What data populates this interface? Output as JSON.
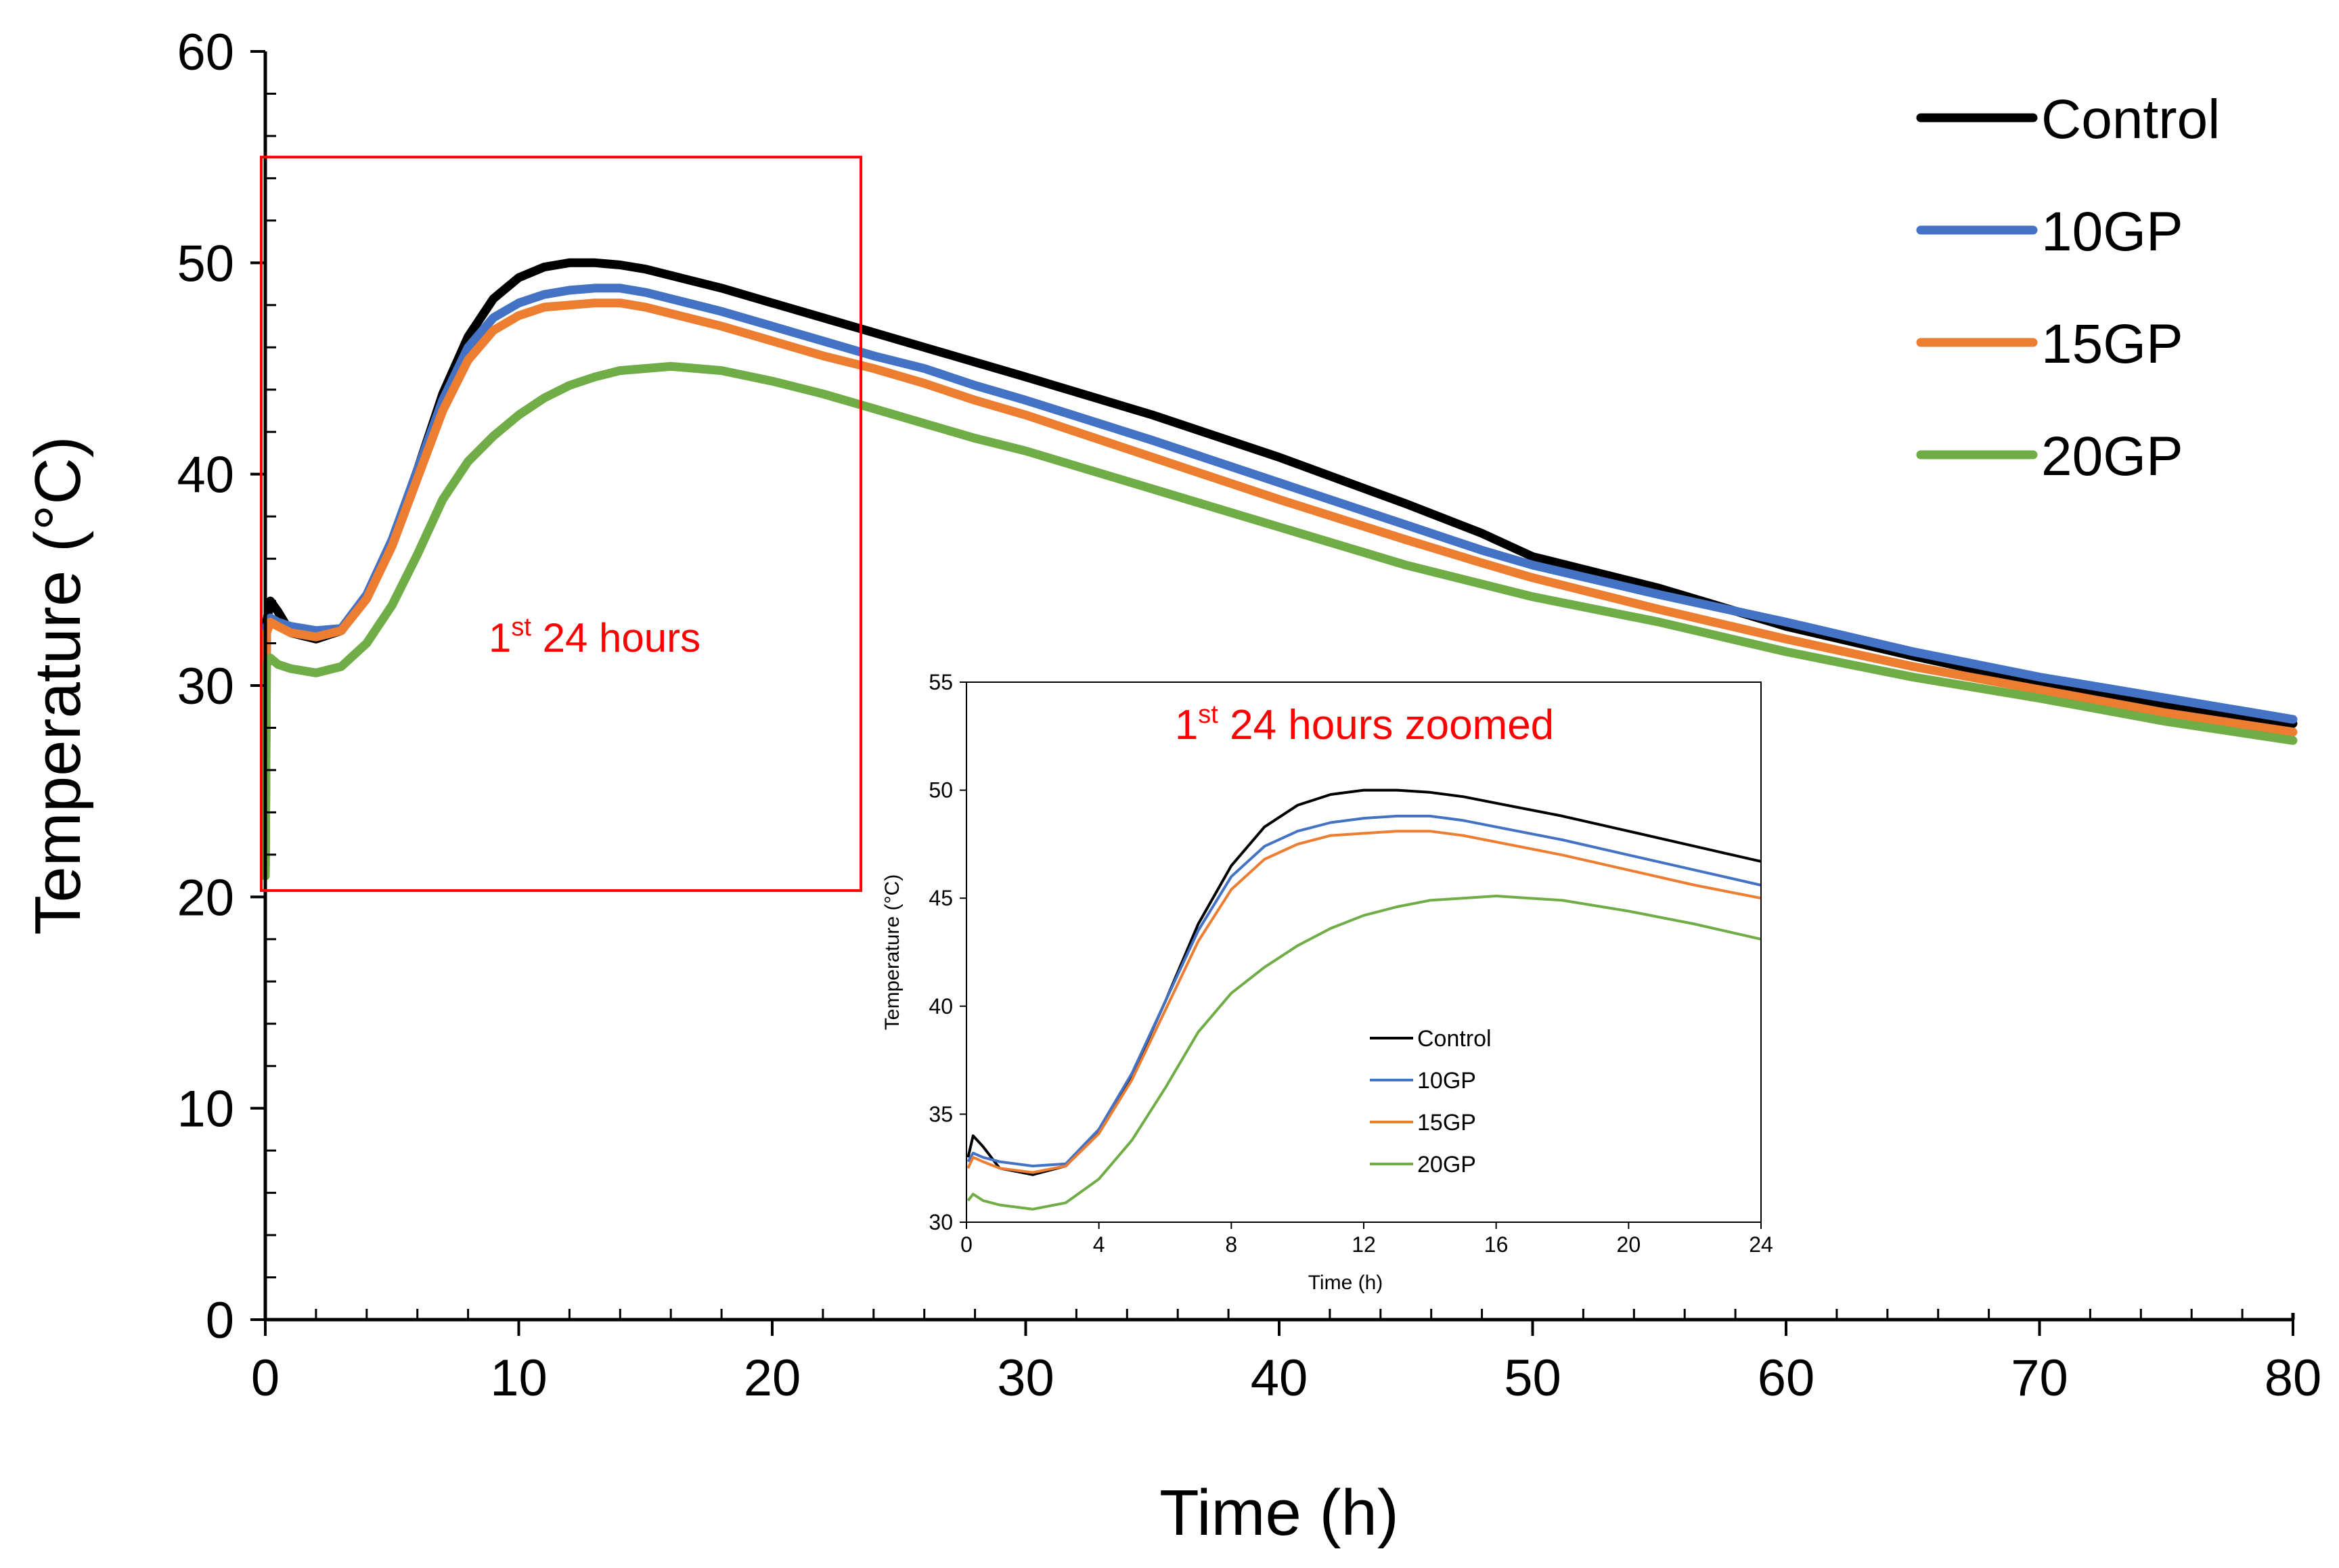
{
  "chart_data": [
    {
      "type": "line",
      "xlabel": "Time (h)",
      "ylabel": "Temperature (°C)",
      "xlim": [
        0,
        80
      ],
      "ylim": [
        0,
        60
      ],
      "xticks": [
        0,
        10,
        20,
        30,
        40,
        50,
        60,
        70,
        80
      ],
      "yticks": [
        0,
        10,
        20,
        30,
        40,
        50,
        60
      ],
      "grid": false,
      "legend": "top-right",
      "annotation": {
        "main": "1",
        "sup": "st",
        "rest": " 24 hours",
        "box_x": [
          0,
          23.5
        ],
        "box_y": [
          20.3,
          55
        ]
      },
      "series": [
        {
          "name": "Control",
          "color": "#000000",
          "points": [
            [
              0,
              21
            ],
            [
              0.05,
              33
            ],
            [
              0.2,
              34
            ],
            [
              0.5,
              33.5
            ],
            [
              1,
              32.5
            ],
            [
              2,
              32.2
            ],
            [
              3,
              32.6
            ],
            [
              4,
              34.2
            ],
            [
              5,
              36.8
            ],
            [
              6,
              40.2
            ],
            [
              7,
              43.8
            ],
            [
              8,
              46.5
            ],
            [
              9,
              48.3
            ],
            [
              10,
              49.3
            ],
            [
              11,
              49.8
            ],
            [
              12,
              50
            ],
            [
              13,
              50
            ],
            [
              14,
              49.9
            ],
            [
              15,
              49.7
            ],
            [
              16,
              49.4
            ],
            [
              18,
              48.8
            ],
            [
              20,
              48.1
            ],
            [
              22,
              47.4
            ],
            [
              24,
              46.7
            ],
            [
              26,
              46
            ],
            [
              28,
              45.3
            ],
            [
              30,
              44.6
            ],
            [
              35,
              42.8
            ],
            [
              40,
              40.8
            ],
            [
              45,
              38.6
            ],
            [
              48,
              37.2
            ],
            [
              50,
              36.1
            ],
            [
              55,
              34.6
            ],
            [
              60,
              32.8
            ],
            [
              65,
              31.4
            ],
            [
              70,
              30.1
            ],
            [
              75,
              29
            ],
            [
              80,
              28.2
            ]
          ]
        },
        {
          "name": "10GP",
          "color": "#4472c4",
          "points": [
            [
              0,
              21
            ],
            [
              0.05,
              32.8
            ],
            [
              0.2,
              33.2
            ],
            [
              0.5,
              33
            ],
            [
              1,
              32.8
            ],
            [
              2,
              32.6
            ],
            [
              3,
              32.7
            ],
            [
              4,
              34.3
            ],
            [
              5,
              36.9
            ],
            [
              6,
              40.2
            ],
            [
              7,
              43.5
            ],
            [
              8,
              46
            ],
            [
              9,
              47.4
            ],
            [
              10,
              48.1
            ],
            [
              11,
              48.5
            ],
            [
              12,
              48.7
            ],
            [
              13,
              48.8
            ],
            [
              14,
              48.8
            ],
            [
              15,
              48.6
            ],
            [
              16,
              48.3
            ],
            [
              18,
              47.7
            ],
            [
              20,
              47
            ],
            [
              22,
              46.3
            ],
            [
              24,
              45.6
            ],
            [
              26,
              45
            ],
            [
              28,
              44.2
            ],
            [
              30,
              43.5
            ],
            [
              35,
              41.6
            ],
            [
              40,
              39.6
            ],
            [
              45,
              37.6
            ],
            [
              48,
              36.4
            ],
            [
              50,
              35.7
            ],
            [
              55,
              34.3
            ],
            [
              60,
              33
            ],
            [
              65,
              31.6
            ],
            [
              70,
              30.4
            ],
            [
              75,
              29.4
            ],
            [
              80,
              28.4
            ]
          ]
        },
        {
          "name": "15GP",
          "color": "#ed7d31",
          "points": [
            [
              0,
              21
            ],
            [
              0.05,
              32.5
            ],
            [
              0.2,
              33
            ],
            [
              0.5,
              32.8
            ],
            [
              1,
              32.5
            ],
            [
              2,
              32.3
            ],
            [
              3,
              32.6
            ],
            [
              4,
              34.1
            ],
            [
              5,
              36.6
            ],
            [
              6,
              39.8
            ],
            [
              7,
              43
            ],
            [
              8,
              45.4
            ],
            [
              9,
              46.8
            ],
            [
              10,
              47.5
            ],
            [
              11,
              47.9
            ],
            [
              12,
              48
            ],
            [
              13,
              48.1
            ],
            [
              14,
              48.1
            ],
            [
              15,
              47.9
            ],
            [
              16,
              47.6
            ],
            [
              18,
              47
            ],
            [
              20,
              46.3
            ],
            [
              22,
              45.6
            ],
            [
              24,
              45
            ],
            [
              26,
              44.3
            ],
            [
              28,
              43.5
            ],
            [
              30,
              42.8
            ],
            [
              35,
              40.8
            ],
            [
              40,
              38.8
            ],
            [
              45,
              36.9
            ],
            [
              48,
              35.8
            ],
            [
              50,
              35.1
            ],
            [
              55,
              33.6
            ],
            [
              60,
              32.2
            ],
            [
              65,
              30.9
            ],
            [
              70,
              29.8
            ],
            [
              75,
              28.7
            ],
            [
              80,
              27.8
            ]
          ]
        },
        {
          "name": "20GP",
          "color": "#70ad47",
          "points": [
            [
              0,
              21
            ],
            [
              0.05,
              31
            ],
            [
              0.2,
              31.3
            ],
            [
              0.5,
              31
            ],
            [
              1,
              30.8
            ],
            [
              2,
              30.6
            ],
            [
              3,
              30.9
            ],
            [
              4,
              32
            ],
            [
              5,
              33.8
            ],
            [
              6,
              36.2
            ],
            [
              7,
              38.8
            ],
            [
              8,
              40.6
            ],
            [
              9,
              41.8
            ],
            [
              10,
              42.8
            ],
            [
              11,
              43.6
            ],
            [
              12,
              44.2
            ],
            [
              13,
              44.6
            ],
            [
              14,
              44.9
            ],
            [
              15,
              45
            ],
            [
              16,
              45.1
            ],
            [
              17,
              45
            ],
            [
              18,
              44.9
            ],
            [
              20,
              44.4
            ],
            [
              22,
              43.8
            ],
            [
              24,
              43.1
            ],
            [
              26,
              42.4
            ],
            [
              28,
              41.7
            ],
            [
              30,
              41.1
            ],
            [
              35,
              39.3
            ],
            [
              40,
              37.5
            ],
            [
              45,
              35.7
            ],
            [
              48,
              34.8
            ],
            [
              50,
              34.2
            ],
            [
              55,
              33
            ],
            [
              60,
              31.6
            ],
            [
              65,
              30.4
            ],
            [
              70,
              29.4
            ],
            [
              75,
              28.3
            ],
            [
              80,
              27.4
            ]
          ]
        }
      ]
    },
    {
      "type": "line",
      "title": {
        "main": "1",
        "sup": "st",
        "rest": " 24 hours zoomed"
      },
      "xlabel": "Time (h)",
      "ylabel": "Temperature (°C)",
      "xlim": [
        0,
        24
      ],
      "ylim": [
        30,
        55
      ],
      "xticks": [
        0,
        4,
        8,
        12,
        16,
        20,
        24
      ],
      "yticks": [
        30,
        35,
        40,
        45,
        50,
        55
      ],
      "grid": false,
      "legend": "center",
      "series": [
        {
          "name": "Control",
          "color": "#000000"
        },
        {
          "name": "10GP",
          "color": "#4472c4"
        },
        {
          "name": "15GP",
          "color": "#ed7d31"
        },
        {
          "name": "20GP",
          "color": "#70ad47"
        }
      ]
    }
  ]
}
